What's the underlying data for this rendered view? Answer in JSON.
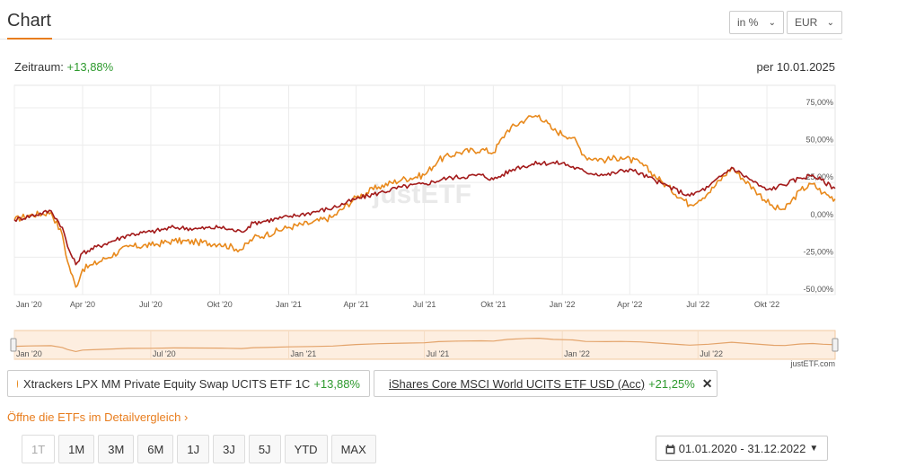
{
  "header": {
    "title": "Chart",
    "unit_select": "in %",
    "currency_select": "EUR"
  },
  "summary": {
    "period_label": "Zeitraum:",
    "period_value": "+13,88%",
    "as_of": "per 10.01.2025"
  },
  "colors": {
    "series1": "#e8891c",
    "series2": "#a31a1a",
    "accent": "#e87d1e",
    "positive": "#2e9a2e"
  },
  "chart_data": {
    "type": "line",
    "x_tick_labels": [
      "Jan '20",
      "Apr '20",
      "Jul '20",
      "Okt '20",
      "Jan '21",
      "Apr '21",
      "Jul '21",
      "Okt '21",
      "Jan '22",
      "Apr '22",
      "Jul '22",
      "Okt '22"
    ],
    "y_tick_labels": [
      "75,00%",
      "50,00%",
      "25,00%",
      "0,00%",
      "-25,00%",
      "-50,00%"
    ],
    "y_ticks": [
      75,
      50,
      25,
      0,
      -25,
      -50
    ],
    "ylim": [
      -50,
      90
    ],
    "xlim": [
      "2020-01-01",
      "2022-12-31"
    ],
    "watermark": "justETF",
    "series": [
      {
        "name": "Xtrackers LPX MM Private Equity Swap UCITS ETF 1C",
        "points": [
          [
            "2020-01-01",
            0
          ],
          [
            "2020-01-20",
            3
          ],
          [
            "2020-02-19",
            5
          ],
          [
            "2020-03-05",
            -10
          ],
          [
            "2020-03-12",
            -28
          ],
          [
            "2020-03-23",
            -45
          ],
          [
            "2020-04-01",
            -33
          ],
          [
            "2020-04-15",
            -30
          ],
          [
            "2020-05-01",
            -26
          ],
          [
            "2020-06-01",
            -18
          ],
          [
            "2020-07-01",
            -17
          ],
          [
            "2020-08-01",
            -14
          ],
          [
            "2020-09-01",
            -15
          ],
          [
            "2020-10-01",
            -16
          ],
          [
            "2020-10-30",
            -20
          ],
          [
            "2020-11-15",
            -12
          ],
          [
            "2020-12-01",
            -10
          ],
          [
            "2021-01-01",
            -5
          ],
          [
            "2021-02-01",
            -2
          ],
          [
            "2021-03-01",
            2
          ],
          [
            "2021-04-01",
            15
          ],
          [
            "2021-05-01",
            22
          ],
          [
            "2021-06-01",
            27
          ],
          [
            "2021-07-01",
            30
          ],
          [
            "2021-07-20",
            40
          ],
          [
            "2021-08-15",
            45
          ],
          [
            "2021-09-15",
            47
          ],
          [
            "2021-10-01",
            45
          ],
          [
            "2021-10-20",
            60
          ],
          [
            "2021-11-15",
            68
          ],
          [
            "2021-12-01",
            70
          ],
          [
            "2021-12-20",
            60
          ],
          [
            "2022-01-15",
            55
          ],
          [
            "2022-02-01",
            42
          ],
          [
            "2022-03-01",
            40
          ],
          [
            "2022-03-20",
            42
          ],
          [
            "2022-04-15",
            38
          ],
          [
            "2022-05-15",
            25
          ],
          [
            "2022-06-20",
            10
          ],
          [
            "2022-07-15",
            18
          ],
          [
            "2022-08-15",
            35
          ],
          [
            "2022-09-15",
            20
          ],
          [
            "2022-10-10",
            8
          ],
          [
            "2022-10-25",
            7
          ],
          [
            "2022-11-15",
            20
          ],
          [
            "2022-12-01",
            24
          ],
          [
            "2022-12-15",
            18
          ],
          [
            "2022-12-31",
            14
          ]
        ],
        "change": "+13,88%"
      },
      {
        "name": "iShares Core MSCI World UCITS ETF USD (Acc)",
        "points": [
          [
            "2020-01-01",
            0
          ],
          [
            "2020-02-19",
            6
          ],
          [
            "2020-03-05",
            -5
          ],
          [
            "2020-03-12",
            -18
          ],
          [
            "2020-03-23",
            -30
          ],
          [
            "2020-04-01",
            -22
          ],
          [
            "2020-05-01",
            -16
          ],
          [
            "2020-06-01",
            -10
          ],
          [
            "2020-07-01",
            -8
          ],
          [
            "2020-08-01",
            -5
          ],
          [
            "2020-09-01",
            -6
          ],
          [
            "2020-10-01",
            -5
          ],
          [
            "2020-10-30",
            -8
          ],
          [
            "2020-11-15",
            -2
          ],
          [
            "2021-01-01",
            2
          ],
          [
            "2021-02-01",
            5
          ],
          [
            "2021-03-01",
            8
          ],
          [
            "2021-04-01",
            14
          ],
          [
            "2021-05-01",
            18
          ],
          [
            "2021-06-01",
            22
          ],
          [
            "2021-07-01",
            24
          ],
          [
            "2021-08-01",
            28
          ],
          [
            "2021-09-15",
            30
          ],
          [
            "2021-10-01",
            27
          ],
          [
            "2021-11-01",
            35
          ],
          [
            "2021-12-01",
            38
          ],
          [
            "2022-01-01",
            38
          ],
          [
            "2022-02-01",
            32
          ],
          [
            "2022-03-01",
            30
          ],
          [
            "2022-04-01",
            34
          ],
          [
            "2022-05-15",
            24
          ],
          [
            "2022-06-20",
            16
          ],
          [
            "2022-07-15",
            22
          ],
          [
            "2022-08-15",
            35
          ],
          [
            "2022-09-30",
            20
          ],
          [
            "2022-10-15",
            22
          ],
          [
            "2022-11-15",
            28
          ],
          [
            "2022-12-01",
            30
          ],
          [
            "2022-12-31",
            21
          ]
        ],
        "change": "+21,25%"
      }
    ],
    "navigator": {
      "x_tick_labels": [
        "Jan '20",
        "Jul '20",
        "Jan '21",
        "Jul '21",
        "Jan '22",
        "Jul '22"
      ],
      "credit": "justETF.com"
    }
  },
  "legend": {
    "items": [
      {
        "name": "Xtrackers LPX MM Private Equity Swap UCITS ETF 1C",
        "change": "+13,88%"
      },
      {
        "name": "iShares Core MSCI World UCITS ETF USD (Acc)",
        "change": "+21,25%",
        "close_icon": "✕"
      }
    ]
  },
  "compare_link": "Öffne die ETFs im Detailvergleich",
  "compare_chevron": "›",
  "ranges": [
    "1T",
    "1M",
    "3M",
    "6M",
    "1J",
    "3J",
    "5J",
    "YTD",
    "MAX"
  ],
  "date_range": {
    "icon": "calendar-icon",
    "value": "01.01.2020 - 31.12.2022"
  }
}
